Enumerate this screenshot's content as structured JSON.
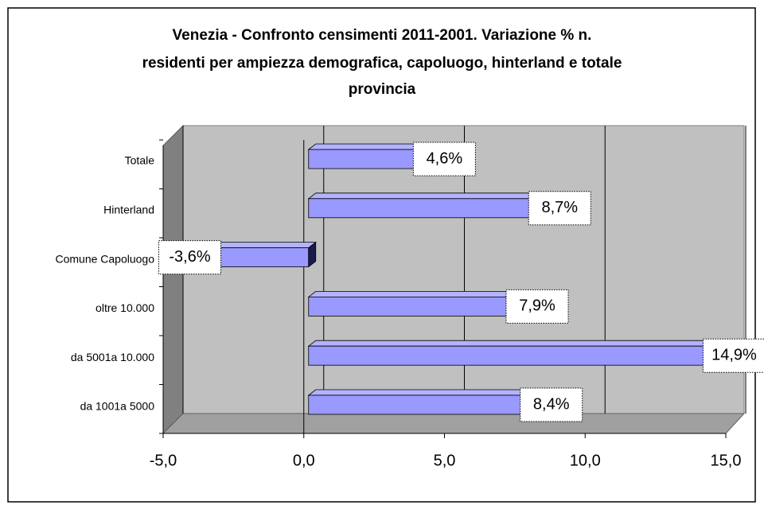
{
  "chart_data": {
    "type": "bar3d-horizontal",
    "title": [
      "Venezia - Confronto censimenti 2011-2001. Variazione % n.",
      "residenti per ampiezza demografica, capoluogo, hinterland e totale",
      "provincia"
    ],
    "categories": [
      "Totale",
      "Hinterland",
      "Comune Capoluogo",
      "oltre 10.000",
      "da 5001a 10.000",
      "da 1001a 5000"
    ],
    "values": [
      4.6,
      8.7,
      -3.6,
      7.9,
      14.9,
      8.4
    ],
    "value_labels": [
      "4,6%",
      "8,7%",
      "-3,6%",
      "7,9%",
      "14,9%",
      "8,4%"
    ],
    "color": "#9999ff",
    "xlim": [
      -5,
      15
    ],
    "xticks": [
      {
        "value": -5,
        "label": "-5,0"
      },
      {
        "value": 0,
        "label": "0,0"
      },
      {
        "value": 5,
        "label": "5,0"
      },
      {
        "value": 10,
        "label": "10,0"
      },
      {
        "value": 15,
        "label": "15,0"
      }
    ],
    "grid": true
  }
}
